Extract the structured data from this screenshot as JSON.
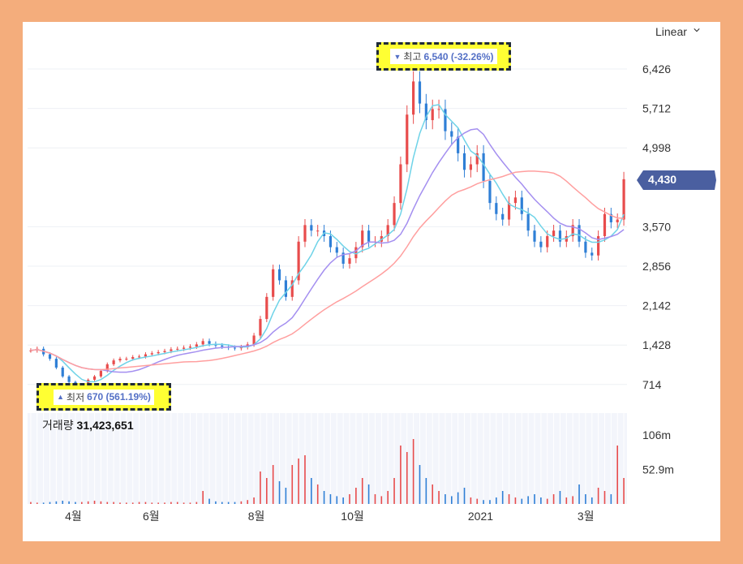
{
  "scale_toggle": {
    "label": "Linear",
    "icon": "chevron-down-icon"
  },
  "high_marker": {
    "arrow": "▼",
    "label": "최고",
    "value": "6,540 (-32.26%)"
  },
  "low_marker": {
    "arrow": "▲",
    "label": "최저",
    "value": "670 (561.19%)"
  },
  "current_price": {
    "value": "4,430",
    "color": "#4a5fa0"
  },
  "volume": {
    "label": "거래량",
    "value": "31,423,651"
  },
  "colors": {
    "up": "#e84c4c",
    "down": "#2f7fd6",
    "ma_short": "#6fd3e8",
    "ma_mid": "#a48ff0",
    "ma_long": "#ff9f9f",
    "vol_bg": "#f3f5fb",
    "frame": "#f4ad7c"
  },
  "chart_data": [
    {
      "type": "candlestick",
      "title": "",
      "y_axis": {
        "ticks": [
          "6,426",
          "5,712",
          "4,998",
          "3,570",
          "2,856",
          "2,142",
          "1,428",
          "714"
        ],
        "range": [
          560,
          7100
        ],
        "position": "right"
      },
      "x_axis": {
        "labels": [
          "4월",
          "6월",
          "8월",
          "10월",
          "2021",
          "3월"
        ]
      },
      "grid": true,
      "moving_averages": [
        "short",
        "mid",
        "long"
      ],
      "high": 6540,
      "low": 670,
      "last": 4430,
      "series": [
        {
          "values": [
            1330,
            1360,
            1260,
            1180,
            1020,
            860,
            760,
            700,
            700,
            800,
            860,
            960,
            1080,
            1150,
            1180,
            1180,
            1210,
            1220,
            1260,
            1280,
            1300,
            1320,
            1350,
            1360,
            1380,
            1400,
            1440,
            1500,
            1450,
            1420,
            1400,
            1380,
            1370,
            1390,
            1440,
            1600,
            1900,
            2300,
            2800,
            2600,
            2300,
            2600,
            3300,
            3600,
            3500,
            3500,
            3400,
            3200,
            3100,
            2900,
            3000,
            3200,
            3500,
            3300,
            3300,
            3400,
            3600,
            4000,
            4700,
            5600,
            6200,
            5800,
            5500,
            5700,
            5700,
            5300,
            5200,
            4900,
            4600,
            4700,
            4900,
            4400,
            4000,
            3800,
            3700,
            4000,
            4100,
            3800,
            3500,
            3300,
            3200,
            3400,
            3500,
            3300,
            3400,
            3600,
            3300,
            3100,
            3050,
            3400,
            3800,
            3650,
            3700,
            4430
          ]
        }
      ]
    },
    {
      "type": "bar",
      "title": "",
      "y_axis": {
        "ticks": [
          "106m",
          "52.9m"
        ],
        "range": [
          0,
          140
        ]
      },
      "series": [
        {
          "name": "거래량",
          "values": [
            3,
            2,
            2,
            3,
            4,
            5,
            4,
            3,
            3,
            4,
            5,
            4,
            3,
            3,
            2,
            2,
            2,
            3,
            3,
            2,
            2,
            2,
            3,
            3,
            2,
            2,
            3,
            20,
            8,
            4,
            3,
            3,
            3,
            4,
            6,
            10,
            50,
            40,
            60,
            35,
            25,
            60,
            70,
            75,
            40,
            30,
            20,
            15,
            12,
            10,
            15,
            25,
            40,
            30,
            15,
            12,
            20,
            40,
            90,
            80,
            100,
            60,
            40,
            30,
            20,
            15,
            12,
            18,
            25,
            10,
            8,
            6,
            6,
            10,
            20,
            15,
            10,
            8,
            12,
            15,
            10,
            8,
            15,
            20,
            10,
            12,
            30,
            15,
            10,
            25,
            20,
            15,
            90,
            40
          ]
        }
      ]
    }
  ]
}
